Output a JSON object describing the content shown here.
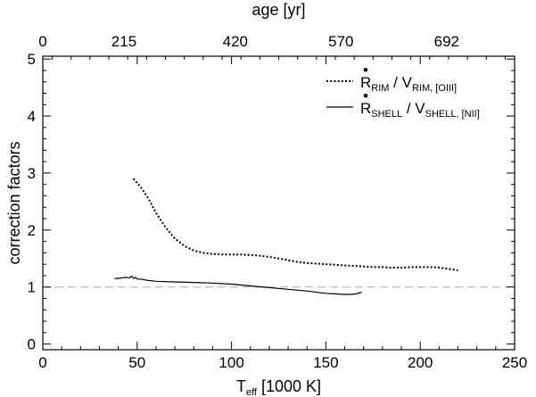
{
  "chart_data": {
    "type": "line",
    "xlabel_main": "T",
    "xlabel_sub": "eff",
    "xlabel_rest": " [1000 K]",
    "ylabel": "correction factors",
    "top_axis_label": "age [yr]",
    "xlim": [
      0,
      250
    ],
    "ylim": [
      -0.1,
      5.05
    ],
    "x_ticks": [
      0,
      50,
      100,
      150,
      200,
      250
    ],
    "x_tick_labels": [
      "0",
      "50",
      "100",
      "150",
      "200",
      "250"
    ],
    "y_ticks": [
      0,
      1,
      2,
      3,
      4,
      5
    ],
    "y_tick_labels": [
      "0",
      "1",
      "2",
      "3",
      "4",
      "5"
    ],
    "top_ticks": [
      {
        "x": 0,
        "label": "0"
      },
      {
        "x": 43,
        "label": "215"
      },
      {
        "x": 102,
        "label": "420"
      },
      {
        "x": 158,
        "label": "570"
      },
      {
        "x": 214,
        "label": "692"
      }
    ],
    "reference_line": {
      "y": 1.0,
      "color": "#aaaaaa",
      "style": "dashed"
    },
    "legend_position": "top-right",
    "series": [
      {
        "key": "rim",
        "dot_char": "•",
        "main": "R",
        "sub1": "RIM",
        "mid": " / V",
        "sub2": "RIM, [OIII]",
        "style": "dotted",
        "color": "#000000",
        "x": [
          48,
          52,
          56,
          60,
          65,
          70,
          75,
          80,
          85,
          90,
          95,
          100,
          105,
          110,
          115,
          120,
          125,
          130,
          135,
          140,
          145,
          150,
          155,
          160,
          165,
          170,
          175,
          180,
          185,
          190,
          195,
          200,
          205,
          210,
          215,
          220
        ],
        "y": [
          2.9,
          2.75,
          2.55,
          2.3,
          2.05,
          1.85,
          1.72,
          1.64,
          1.6,
          1.58,
          1.57,
          1.57,
          1.57,
          1.56,
          1.55,
          1.53,
          1.5,
          1.47,
          1.44,
          1.42,
          1.41,
          1.4,
          1.39,
          1.38,
          1.37,
          1.36,
          1.35,
          1.35,
          1.34,
          1.34,
          1.35,
          1.35,
          1.35,
          1.34,
          1.32,
          1.29
        ]
      },
      {
        "key": "shell",
        "dot_char": "•",
        "main": "R",
        "sub1": "SHELL",
        "mid": " / V",
        "sub2": "SHELL, [NII]",
        "style": "solid",
        "color": "#000000",
        "x": [
          38,
          40,
          42,
          44,
          46,
          47,
          48,
          49,
          50,
          52,
          55,
          60,
          70,
          80,
          90,
          100,
          110,
          120,
          130,
          140,
          150,
          155,
          160,
          163,
          166,
          169
        ],
        "y": [
          1.15,
          1.15,
          1.16,
          1.17,
          1.16,
          1.19,
          1.15,
          1.17,
          1.14,
          1.14,
          1.12,
          1.1,
          1.09,
          1.08,
          1.07,
          1.05,
          1.02,
          0.99,
          0.96,
          0.93,
          0.89,
          0.88,
          0.87,
          0.87,
          0.88,
          0.91
        ]
      }
    ]
  }
}
